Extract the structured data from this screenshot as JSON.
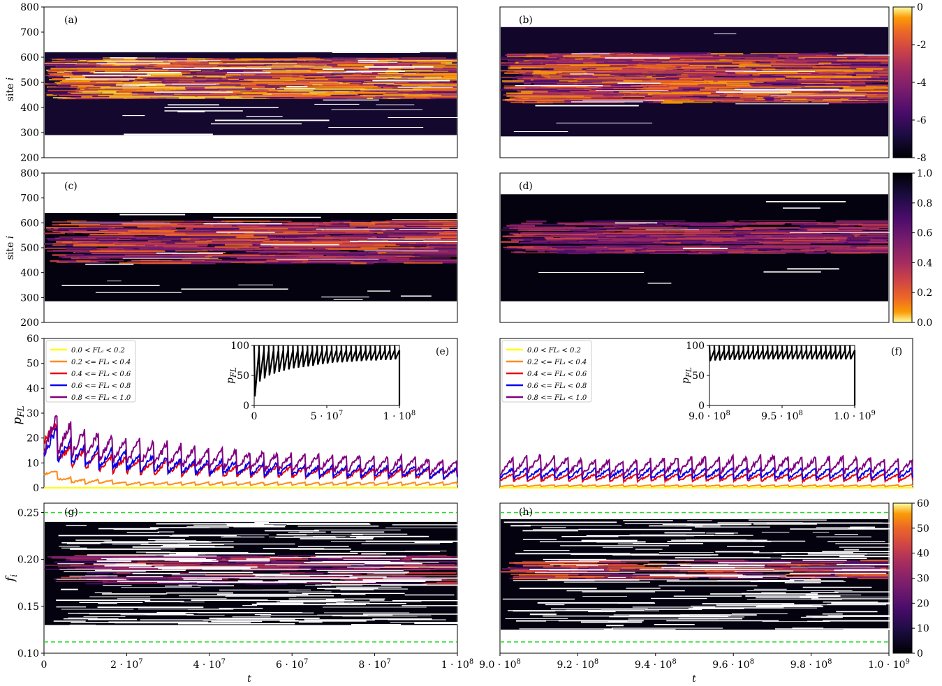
{
  "chart_data": [
    {
      "panel": "(a)",
      "type": "heatmap",
      "ylabel": "site i",
      "ylim": [
        200,
        800
      ],
      "yticks": [
        "200",
        "300",
        "400",
        "500",
        "600",
        "700",
        "800"
      ],
      "xlim": [
        0,
        100000000
      ],
      "colorbar": {
        "range": [
          -8,
          0
        ],
        "ticks": [
          "0",
          "-2",
          "-4",
          "-6",
          "-8"
        ],
        "colormap": "inferno"
      }
    },
    {
      "panel": "(b)",
      "type": "heatmap",
      "ylim": [
        200,
        800
      ],
      "xlim": [
        900000000,
        1000000000
      ]
    },
    {
      "panel": "(c)",
      "type": "heatmap",
      "ylabel": "site i",
      "ylim": [
        200,
        800
      ],
      "yticks": [
        "200",
        "300",
        "400",
        "500",
        "600",
        "700",
        "800"
      ],
      "xlim": [
        0,
        100000000
      ],
      "colorbar": {
        "range": [
          0.0,
          1.0
        ],
        "ticks": [
          "1.0",
          "0.8",
          "0.6",
          "0.4",
          "0.2",
          "0.0"
        ],
        "colormap": "inferno_r"
      }
    },
    {
      "panel": "(d)",
      "type": "heatmap",
      "ylim": [
        200,
        800
      ],
      "xlim": [
        900000000,
        1000000000
      ]
    },
    {
      "panel": "(e)",
      "type": "line",
      "ylabel": "p_FL",
      "ylim": [
        0,
        60
      ],
      "yticks": [
        "0",
        "10",
        "20",
        "30",
        "40",
        "50",
        "60"
      ],
      "xlim": [
        0,
        100000000
      ],
      "legend": [
        "0.0 < FL_i < 0.2",
        "0.2 <= FL_i < 0.4",
        "0.4 <= FL_i < 0.6",
        "0.6 <= FL_i < 0.8",
        "0.8 <= FL_i < 1.0"
      ],
      "legend_position": "top-left",
      "series": [
        {
          "name": "0.0 < FL_i < 0.2",
          "color": "#ffff00",
          "values": [
            0,
            0,
            0,
            0,
            0,
            0,
            0,
            0,
            0,
            0,
            0,
            0,
            0,
            0,
            0,
            0,
            0,
            0,
            0,
            0,
            0
          ]
        },
        {
          "name": "0.2 <= FL_i < 0.4",
          "color": "#ff8c1a",
          "values": [
            9,
            4,
            3,
            3,
            2,
            2,
            2,
            2,
            2,
            2,
            2,
            2,
            2,
            2,
            2,
            2,
            2,
            2,
            2,
            2,
            2
          ]
        },
        {
          "name": "0.4 <= FL_i < 0.6",
          "color": "#e8000b",
          "values": [
            32,
            16,
            14,
            12,
            11,
            10,
            10,
            9,
            9,
            8,
            8,
            8,
            8,
            7,
            7,
            7,
            7,
            7,
            7,
            7,
            7
          ]
        },
        {
          "name": "0.6 <= FL_i < 0.8",
          "color": "#0000ee",
          "values": [
            25,
            18,
            15,
            14,
            13,
            12,
            11,
            10,
            10,
            10,
            9,
            9,
            9,
            8,
            8,
            8,
            8,
            8,
            8,
            7,
            7
          ]
        },
        {
          "name": "0.8 <= FL_i < 1.0",
          "color": "#800080",
          "values": [
            28,
            24,
            21,
            19,
            18,
            17,
            16,
            15,
            14,
            14,
            13,
            13,
            12,
            12,
            12,
            12,
            11,
            11,
            11,
            10,
            10
          ]
        }
      ],
      "inset": {
        "ylabel": "p_FL",
        "ylim": [
          0,
          100
        ],
        "yticks": [
          "0",
          "50",
          "100"
        ],
        "xticks": [
          "0",
          "5 · 10^7",
          "1 · 10^8"
        ],
        "trough_values": [
          15,
          40,
          45,
          50,
          53,
          56,
          58,
          60,
          62,
          63,
          64,
          65,
          66,
          68,
          69,
          70,
          71,
          72,
          72,
          73,
          73,
          74,
          74,
          75,
          75,
          75,
          76,
          76,
          76,
          77
        ],
        "peak_value": 100
      }
    },
    {
      "panel": "(f)",
      "type": "line",
      "ylim": [
        0,
        60
      ],
      "xlim": [
        900000000,
        1000000000
      ],
      "legend": [
        "0.0 < FL_i < 0.2",
        "0.2 <= FL_i < 0.4",
        "0.4 <= FL_i < 0.6",
        "0.6 <= FL_i < 0.8",
        "0.8 <= FL_i < 1.0"
      ],
      "legend_position": "top-left",
      "series": [
        {
          "name": "0.0 < FL_i < 0.2",
          "color": "#ffff00",
          "values": [
            0,
            0,
            0,
            0,
            0,
            0,
            0,
            0,
            0,
            0,
            0,
            0,
            0,
            0,
            0,
            0,
            0,
            0,
            0,
            0,
            0
          ]
        },
        {
          "name": "0.2 <= FL_i < 0.4",
          "color": "#ff8c1a",
          "values": [
            1,
            1,
            1,
            1,
            1,
            1,
            1,
            1,
            1,
            1,
            1,
            1,
            1,
            1,
            1,
            1,
            1,
            1,
            1,
            1,
            1
          ]
        },
        {
          "name": "0.4 <= FL_i < 0.6",
          "color": "#e8000b",
          "values": [
            5,
            5,
            5,
            5,
            5,
            5,
            5,
            5,
            5,
            5,
            5,
            5,
            5,
            5,
            5,
            5,
            5,
            5,
            5,
            5,
            5
          ]
        },
        {
          "name": "0.6 <= FL_i < 0.8",
          "color": "#0000ee",
          "values": [
            7,
            7,
            7,
            7,
            7,
            7,
            7,
            7,
            7,
            7,
            7,
            7,
            7,
            7,
            7,
            7,
            7,
            7,
            7,
            7,
            7
          ]
        },
        {
          "name": "0.8 <= FL_i < 1.0",
          "color": "#800080",
          "values": [
            10,
            11,
            12,
            11,
            10,
            10,
            10,
            10,
            11,
            11,
            11,
            11,
            11,
            12,
            11,
            11,
            11,
            11,
            11,
            10,
            10
          ]
        }
      ],
      "inset": {
        "ylabel": "p_FL",
        "ylim": [
          0,
          100
        ],
        "yticks": [
          "0",
          "50",
          "100"
        ],
        "xticks": [
          "9.0 · 10^8",
          "9.5 · 10^8",
          "1.0 · 10^9"
        ],
        "trough_values": [
          74,
          75,
          75,
          76,
          76,
          76,
          76,
          77,
          77,
          77,
          77,
          77,
          77,
          77,
          77,
          77,
          77,
          77,
          77,
          77,
          77,
          77,
          77,
          77,
          77,
          77,
          77,
          77,
          77,
          77
        ],
        "peak_value": 100
      }
    },
    {
      "panel": "(g)",
      "type": "heatmap",
      "ylabel": "f_i",
      "xlabel": "t",
      "ylim": [
        0.1,
        0.26
      ],
      "yticks": [
        "0.10",
        "0.15",
        "0.20",
        "0.25"
      ],
      "xlim": [
        0,
        100000000
      ],
      "xticks": [
        "0",
        "2 · 10^7",
        "4 · 10^7",
        "6 · 10^7",
        "8 · 10^7",
        "1 · 10^8"
      ],
      "hlines": [
        0.25,
        0.112
      ],
      "hline_color": "#22dd22",
      "colorbar": {
        "range": [
          0,
          60
        ],
        "ticks": [
          "60",
          "50",
          "40",
          "30",
          "20",
          "10",
          "0"
        ],
        "colormap": "inferno"
      }
    },
    {
      "panel": "(h)",
      "type": "heatmap",
      "xlabel": "t",
      "ylim": [
        0.1,
        0.26
      ],
      "xlim": [
        900000000,
        1000000000
      ],
      "xticks": [
        "9.0 · 10^8",
        "9.2 · 10^8",
        "9.4 · 10^8",
        "9.6 · 10^8",
        "9.8 · 10^8",
        "1.0 · 10^9"
      ],
      "hlines": [
        0.25,
        0.112
      ],
      "hline_color": "#22dd22"
    }
  ]
}
